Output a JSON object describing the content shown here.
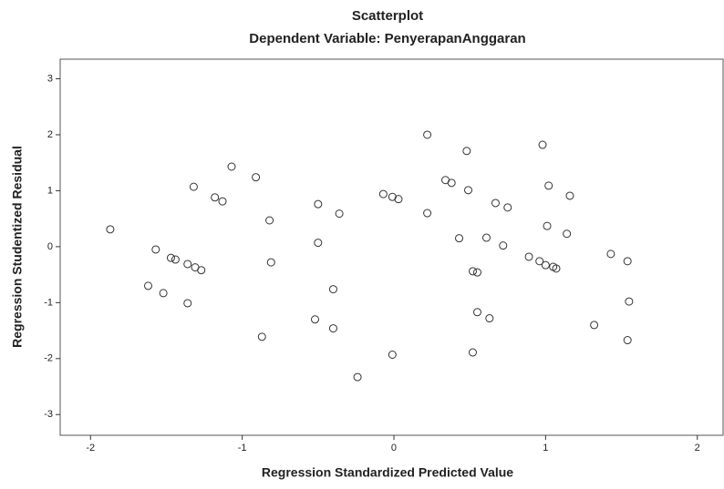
{
  "chart_data": {
    "type": "scatter",
    "title": "Scatterplot",
    "subtitle": "Dependent Variable: PenyerapanAnggaran",
    "x_label": "Regression Standardized Predicted Value",
    "y_label": "Regression Studentized Residual",
    "xlim": [
      -2.2,
      2.17
    ],
    "ylim": [
      -3.37,
      3.35
    ],
    "xticks": [
      -2,
      -1,
      0,
      1,
      2
    ],
    "yticks": [
      -3,
      -2,
      -1,
      0,
      1,
      2,
      3
    ],
    "color": "#333333",
    "series": [
      {
        "x": [
          -1.87,
          -1.57,
          -1.47,
          -1.44,
          -1.36,
          -1.31,
          -1.27,
          -1.62,
          -1.52,
          -1.36,
          -1.32,
          -1.18,
          -1.13,
          -1.07,
          -0.91,
          -0.82,
          -0.81,
          -0.87,
          -0.5,
          -0.36,
          -0.5,
          -0.4,
          -0.52,
          -0.4,
          -0.24,
          -0.07,
          -0.01,
          0.03,
          -0.01,
          0.22,
          0.22,
          0.34,
          0.38,
          0.48,
          0.49,
          0.43,
          0.52,
          0.55,
          0.55,
          0.63,
          0.52,
          0.61,
          0.67,
          0.75,
          0.72,
          0.89,
          0.96,
          1.0,
          1.05,
          1.07,
          0.98,
          1.02,
          1.01,
          1.16,
          1.14,
          1.43,
          1.54,
          1.55,
          1.32,
          1.54
        ],
        "values": [
          0.31,
          -0.05,
          -0.2,
          -0.23,
          -0.31,
          -0.37,
          -0.42,
          -0.7,
          -0.83,
          -1.01,
          1.07,
          0.88,
          0.81,
          1.43,
          1.24,
          0.47,
          -0.28,
          -1.61,
          0.76,
          0.59,
          0.07,
          -0.76,
          -1.3,
          -1.46,
          -2.33,
          0.94,
          0.89,
          0.85,
          -1.93,
          2.0,
          0.6,
          1.19,
          1.14,
          1.71,
          1.01,
          0.15,
          -0.44,
          -0.46,
          -1.17,
          -1.28,
          -1.89,
          0.16,
          0.78,
          0.7,
          0.02,
          -0.18,
          -0.26,
          -0.33,
          -0.36,
          -0.39,
          1.82,
          1.09,
          0.37,
          0.91,
          0.23,
          -0.13,
          -0.26,
          -0.98,
          -1.4,
          -1.67
        ]
      }
    ]
  }
}
